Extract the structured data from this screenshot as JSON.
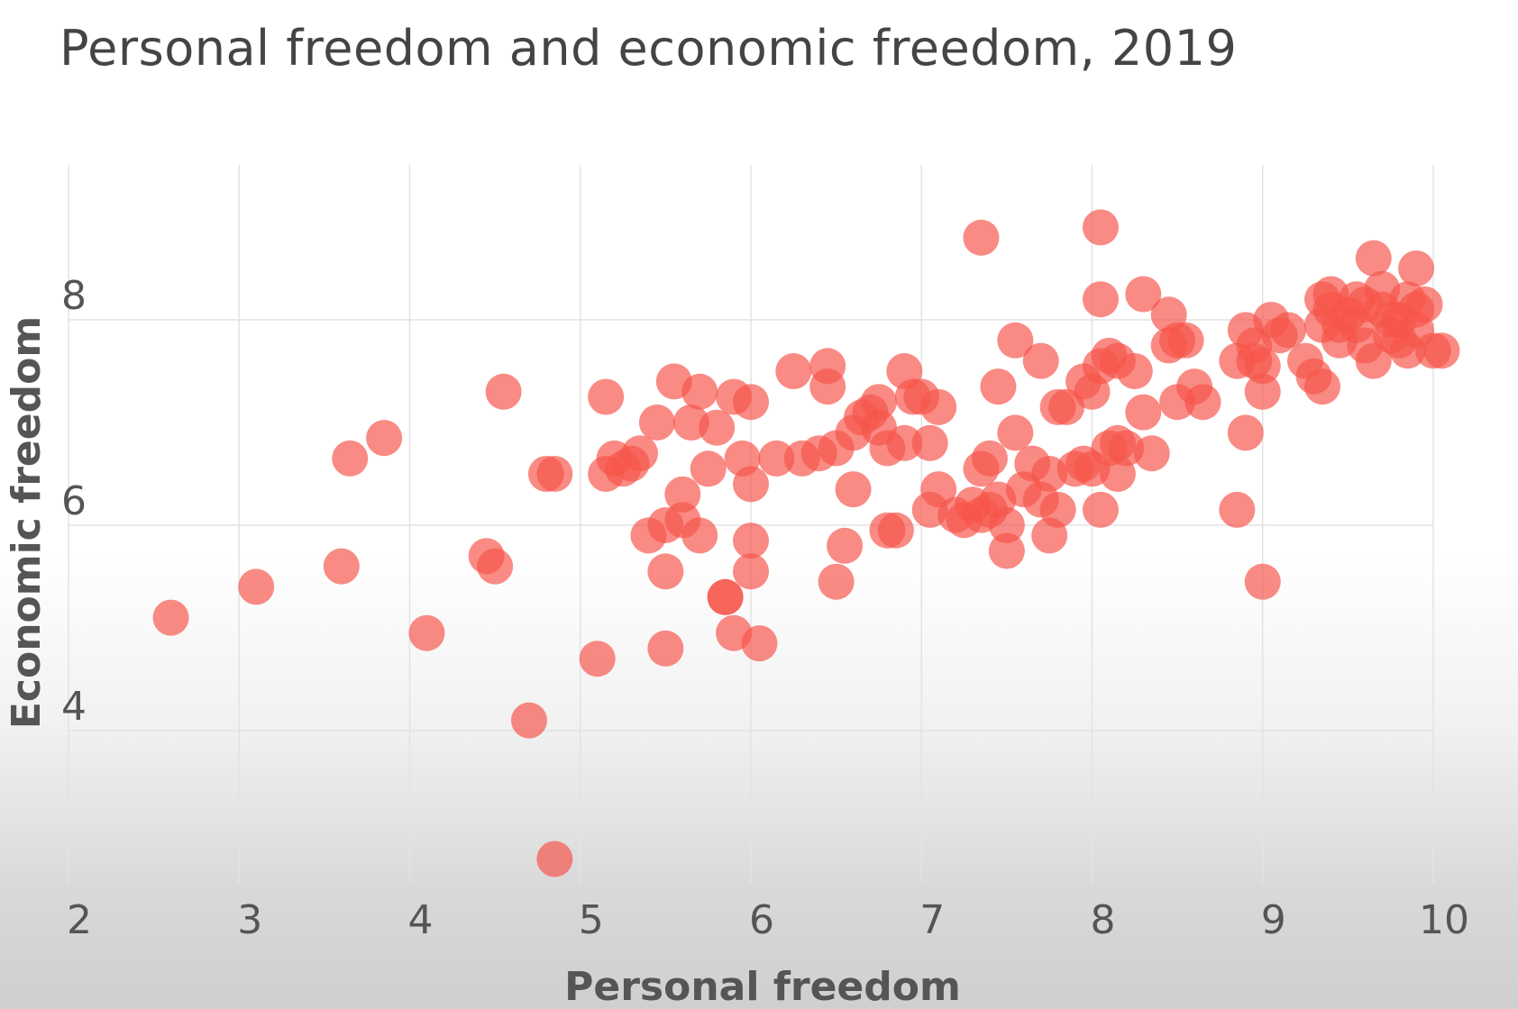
{
  "chart_data": {
    "type": "scatter",
    "title": "Personal freedom and economic freedom, 2019",
    "xlabel": "Personal freedom",
    "ylabel": "Economic freedom",
    "xlim": [
      2,
      10
    ],
    "ylim": [
      2.7,
      9.2
    ],
    "xticks": [
      "2",
      "3",
      "4",
      "5",
      "6",
      "7",
      "8",
      "9",
      "10"
    ],
    "yticks": [
      "4",
      "6",
      "8"
    ],
    "grid": true,
    "color": "#f6544a",
    "points": [
      [
        2.6,
        5.1
      ],
      [
        3.1,
        5.4
      ],
      [
        3.6,
        5.6
      ],
      [
        3.65,
        6.65
      ],
      [
        3.85,
        6.85
      ],
      [
        4.1,
        4.95
      ],
      [
        4.45,
        5.7
      ],
      [
        4.5,
        5.6
      ],
      [
        4.55,
        7.3
      ],
      [
        4.7,
        4.1
      ],
      [
        4.8,
        6.5
      ],
      [
        4.85,
        6.5
      ],
      [
        4.85,
        2.75
      ],
      [
        5.1,
        4.7
      ],
      [
        5.15,
        7.25
      ],
      [
        5.15,
        6.5
      ],
      [
        5.2,
        6.65
      ],
      [
        5.25,
        6.55
      ],
      [
        5.3,
        6.6
      ],
      [
        5.35,
        6.7
      ],
      [
        5.4,
        5.9
      ],
      [
        5.45,
        7.0
      ],
      [
        5.5,
        4.8
      ],
      [
        5.5,
        5.55
      ],
      [
        5.5,
        6.0
      ],
      [
        5.55,
        7.4
      ],
      [
        5.6,
        6.05
      ],
      [
        5.6,
        6.3
      ],
      [
        5.65,
        7.0
      ],
      [
        5.7,
        7.3
      ],
      [
        5.7,
        5.9
      ],
      [
        5.75,
        6.55
      ],
      [
        5.8,
        6.95
      ],
      [
        5.85,
        5.3
      ],
      [
        5.85,
        5.3
      ],
      [
        5.9,
        4.95
      ],
      [
        5.9,
        7.25
      ],
      [
        5.95,
        6.65
      ],
      [
        6.0,
        7.2
      ],
      [
        6.0,
        6.4
      ],
      [
        6.0,
        5.85
      ],
      [
        6.0,
        5.55
      ],
      [
        6.05,
        4.85
      ],
      [
        6.15,
        6.65
      ],
      [
        6.25,
        7.5
      ],
      [
        6.3,
        6.65
      ],
      [
        6.4,
        6.7
      ],
      [
        6.45,
        7.55
      ],
      [
        6.45,
        7.35
      ],
      [
        6.5,
        6.75
      ],
      [
        6.5,
        5.45
      ],
      [
        6.6,
        6.35
      ],
      [
        6.55,
        5.8
      ],
      [
        6.6,
        6.9
      ],
      [
        6.65,
        7.05
      ],
      [
        6.7,
        7.1
      ],
      [
        6.75,
        6.95
      ],
      [
        6.75,
        7.2
      ],
      [
        6.8,
        6.75
      ],
      [
        6.8,
        5.95
      ],
      [
        6.85,
        5.95
      ],
      [
        6.9,
        6.8
      ],
      [
        6.9,
        7.5
      ],
      [
        6.95,
        7.25
      ],
      [
        7.0,
        7.25
      ],
      [
        7.05,
        6.8
      ],
      [
        7.05,
        6.15
      ],
      [
        7.1,
        6.35
      ],
      [
        7.1,
        7.15
      ],
      [
        7.2,
        6.1
      ],
      [
        7.25,
        6.05
      ],
      [
        7.3,
        6.2
      ],
      [
        7.35,
        6.1
      ],
      [
        7.35,
        6.55
      ],
      [
        7.4,
        6.65
      ],
      [
        7.4,
        6.15
      ],
      [
        7.45,
        7.35
      ],
      [
        7.45,
        6.25
      ],
      [
        7.5,
        6.0
      ],
      [
        7.5,
        5.75
      ],
      [
        7.55,
        6.9
      ],
      [
        7.55,
        7.8
      ],
      [
        7.6,
        6.35
      ],
      [
        7.65,
        6.6
      ],
      [
        7.7,
        7.6
      ],
      [
        7.7,
        6.25
      ],
      [
        7.75,
        6.5
      ],
      [
        7.75,
        5.9
      ],
      [
        7.8,
        7.15
      ],
      [
        7.8,
        6.15
      ],
      [
        7.85,
        7.15
      ],
      [
        7.9,
        6.55
      ],
      [
        7.95,
        7.4
      ],
      [
        7.95,
        6.6
      ],
      [
        8.0,
        6.55
      ],
      [
        8.0,
        7.3
      ],
      [
        8.05,
        6.15
      ],
      [
        8.05,
        7.55
      ],
      [
        8.05,
        8.2
      ],
      [
        8.1,
        7.65
      ],
      [
        8.1,
        6.75
      ],
      [
        8.15,
        7.6
      ],
      [
        8.15,
        6.8
      ],
      [
        8.15,
        6.5
      ],
      [
        8.2,
        6.75
      ],
      [
        8.25,
        7.5
      ],
      [
        8.3,
        7.1
      ],
      [
        8.3,
        8.25
      ],
      [
        8.35,
        6.7
      ],
      [
        8.45,
        7.75
      ],
      [
        8.45,
        8.05
      ],
      [
        8.5,
        7.2
      ],
      [
        8.5,
        7.8
      ],
      [
        8.55,
        7.8
      ],
      [
        8.6,
        7.35
      ],
      [
        8.65,
        7.2
      ],
      [
        8.85,
        6.15
      ],
      [
        8.85,
        7.6
      ],
      [
        8.9,
        6.9
      ],
      [
        8.9,
        7.9
      ],
      [
        8.95,
        7.6
      ],
      [
        8.95,
        7.75
      ],
      [
        9.0,
        7.55
      ],
      [
        9.0,
        5.45
      ],
      [
        9.0,
        7.3
      ],
      [
        9.05,
        8.0
      ],
      [
        9.1,
        7.85
      ],
      [
        9.15,
        7.9
      ],
      [
        9.25,
        7.6
      ],
      [
        9.3,
        7.45
      ],
      [
        9.35,
        7.35
      ],
      [
        9.35,
        8.2
      ],
      [
        9.4,
        8.25
      ],
      [
        7.35,
        8.8
      ],
      [
        8.05,
        8.9
      ],
      [
        9.35,
        7.95
      ],
      [
        9.4,
        8.1
      ],
      [
        9.45,
        7.8
      ],
      [
        9.5,
        8.05
      ],
      [
        9.55,
        7.95
      ],
      [
        9.6,
        8.15
      ],
      [
        9.65,
        7.6
      ],
      [
        9.65,
        8.6
      ],
      [
        9.7,
        8.1
      ],
      [
        9.75,
        7.85
      ],
      [
        9.8,
        8.0
      ],
      [
        9.85,
        8.2
      ],
      [
        9.85,
        7.7
      ],
      [
        9.9,
        7.9
      ],
      [
        9.9,
        8.5
      ],
      [
        9.95,
        8.15
      ],
      [
        10.0,
        7.7
      ],
      [
        9.45,
        7.95
      ],
      [
        9.55,
        8.2
      ],
      [
        9.6,
        7.75
      ],
      [
        9.7,
        8.3
      ],
      [
        9.75,
        8.0
      ],
      [
        9.8,
        7.8
      ],
      [
        9.9,
        8.1
      ],
      [
        10.05,
        7.7
      ]
    ]
  }
}
